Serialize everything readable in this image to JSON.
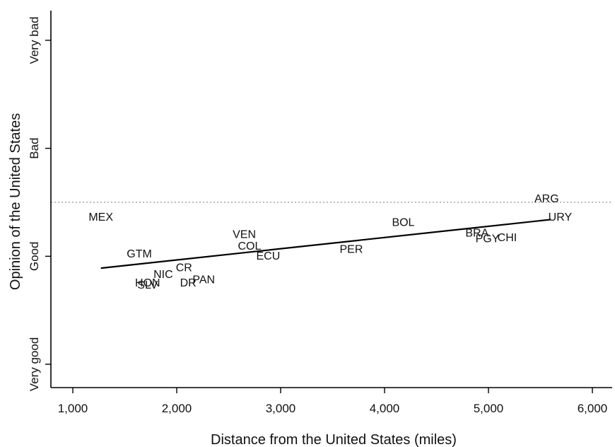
{
  "chart_data": {
    "type": "scatter",
    "title": "",
    "xlabel": "Distance from the United States (miles)",
    "ylabel": "Opinion of the United States",
    "xlim": [
      800,
      6200
    ],
    "ylim": [
      0.8,
      4.15
    ],
    "x_ticks": [
      {
        "value": 1000,
        "label": "1,000"
      },
      {
        "value": 2000,
        "label": "2,000"
      },
      {
        "value": 3000,
        "label": "3,000"
      },
      {
        "value": 4000,
        "label": "4,000"
      },
      {
        "value": 5000,
        "label": "5,000"
      },
      {
        "value": 6000,
        "label": "6,000"
      }
    ],
    "y_ticks": [
      {
        "value": 1,
        "label": "Very good"
      },
      {
        "value": 2,
        "label": "Good"
      },
      {
        "value": 3,
        "label": "Bad"
      },
      {
        "value": 4,
        "label": "Very bad"
      }
    ],
    "reference_line_y": 2.5,
    "points": [
      {
        "label": "MEX",
        "x": 1270,
        "y": 2.37
      },
      {
        "label": "GTM",
        "x": 1640,
        "y": 2.03
      },
      {
        "label": "HON",
        "x": 1720,
        "y": 1.76
      },
      {
        "label": "SLV",
        "x": 1720,
        "y": 1.74
      },
      {
        "label": "NIC",
        "x": 1870,
        "y": 1.84
      },
      {
        "label": "CR",
        "x": 2070,
        "y": 1.9
      },
      {
        "label": "DR",
        "x": 2110,
        "y": 1.76
      },
      {
        "label": "PAN",
        "x": 2260,
        "y": 1.79
      },
      {
        "label": "VEN",
        "x": 2650,
        "y": 2.21
      },
      {
        "label": "COL",
        "x": 2700,
        "y": 2.1
      },
      {
        "label": "ECU",
        "x": 2880,
        "y": 2.01
      },
      {
        "label": "PER",
        "x": 3680,
        "y": 2.07
      },
      {
        "label": "BOL",
        "x": 4180,
        "y": 2.32
      },
      {
        "label": "BRA",
        "x": 4890,
        "y": 2.22
      },
      {
        "label": "PGY",
        "x": 4990,
        "y": 2.17
      },
      {
        "label": "CHI",
        "x": 5180,
        "y": 2.18
      },
      {
        "label": "ARG",
        "x": 5560,
        "y": 2.54
      },
      {
        "label": "URY",
        "x": 5690,
        "y": 2.37
      }
    ],
    "fit_line": {
      "x": [
        1270,
        5600
      ],
      "y": [
        1.89,
        2.34
      ]
    }
  }
}
